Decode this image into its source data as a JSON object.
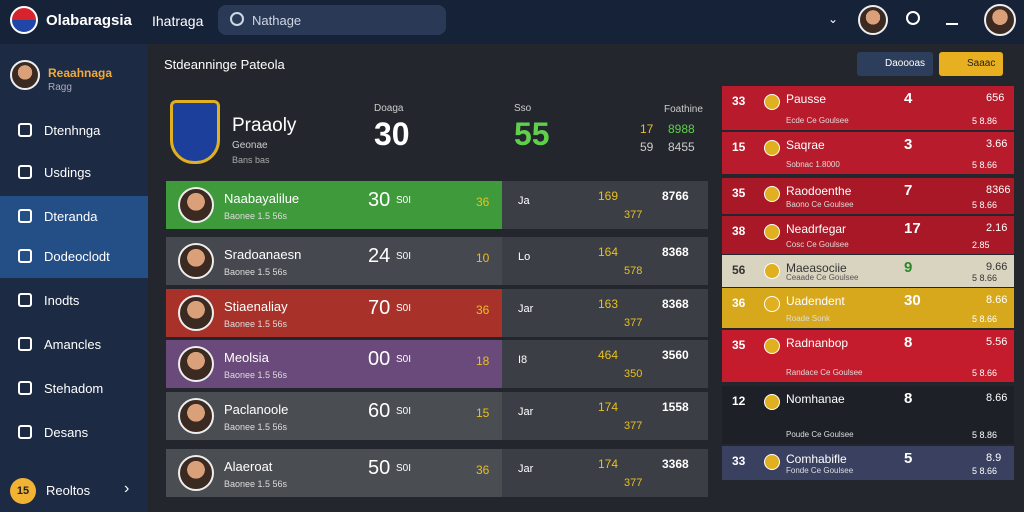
{
  "header": {
    "brand": "Olabaragsia",
    "nav": "Ihatraga",
    "search": "Nathage"
  },
  "sidebar": {
    "user": "Reaahnaga",
    "user_sub": "Ragg",
    "items": [
      "Dtenhnga",
      "Usdings",
      "Dteranda",
      "Dodeoclodt",
      "Inodts",
      "Amancles",
      "Stehadom",
      "Desans"
    ],
    "footer": "Reoltos",
    "footer_badge": "15"
  },
  "main": {
    "title": "Stdeanninge Pateola",
    "buttons": [
      "Daoooas",
      "Saaac"
    ],
    "summary": {
      "team": "Praaoly",
      "sub": "Geonae",
      "meta": "Bans bas",
      "stats": [
        {
          "label": "Doaga",
          "value": "30"
        },
        {
          "label": "Sso",
          "value": "55"
        }
      ],
      "side_label": "Foathine",
      "side": [
        [
          "17",
          "8988"
        ],
        [
          "59",
          "8455"
        ]
      ]
    },
    "rows": [
      {
        "name": "Naabayalilue",
        "meta": "Baonee 1.5 56s",
        "score": "30",
        "tag": "S0I",
        "mid": "36",
        "code": "Ja",
        "val": "169",
        "num": "8766",
        "sub": "377",
        "color": "#3f9a3c"
      },
      {
        "name": "Sradoanaesn",
        "meta": "Baonee 1.5 56s",
        "score": "24",
        "tag": "S0I",
        "mid": "10",
        "code": "Lo",
        "val": "164",
        "num": "8368",
        "sub": "578",
        "color": "#45484e"
      },
      {
        "name": "Stiaenaliay",
        "meta": "Baonee 1.5 56s",
        "score": "70",
        "tag": "S0I",
        "mid": "36",
        "code": "Jar",
        "val": "163",
        "num": "8368",
        "sub": "377",
        "color": "#a8322a"
      },
      {
        "name": "Meolsia",
        "meta": "Baonee 1.5 56s",
        "score": "00",
        "tag": "S0I",
        "mid": "18",
        "code": "I8",
        "val": "464",
        "num": "3560",
        "sub": "350",
        "color": "#6a4a7a"
      },
      {
        "name": "Paclanoole",
        "meta": "Baonee 1.5 56s",
        "score": "60",
        "tag": "S0I",
        "mid": "15",
        "code": "Jar",
        "val": "174",
        "num": "1558",
        "sub": "377",
        "color": "#4a4d52"
      },
      {
        "name": "Alaeroat",
        "meta": "Baonee 1.5 56s",
        "score": "50",
        "tag": "S0I",
        "mid": "36",
        "code": "Jar",
        "val": "174",
        "num": "3368",
        "sub": "377",
        "color": "#4a4d52"
      }
    ]
  },
  "standings": [
    {
      "rank": "33",
      "name": "Pausse",
      "meta": "Ecde Ce Goulsee",
      "score": "4",
      "value": "656",
      "sub": "5 8.86",
      "color": "#b81c2c"
    },
    {
      "rank": "15",
      "name": "Saqrae",
      "meta": "Sobnac 1.8000",
      "score": "3",
      "value": "3.66",
      "sub": "5 8.66",
      "color": "#b81c2c"
    },
    {
      "rank": "35",
      "name": "Raodoenthe",
      "meta": "Baono Ce Goulsee",
      "score": "7",
      "value": "8366",
      "sub": "5 8.66",
      "color": "#a81826"
    },
    {
      "rank": "38",
      "name": "Neadrfegar",
      "meta": "Cosc Ce Goulsee",
      "score": "17",
      "value": "2.16",
      "sub": "2.85",
      "color": "#a81826"
    },
    {
      "rank": "56",
      "name": "Maeasociie",
      "meta": "Ceaade Ce Goulsee",
      "score": "9",
      "value": "9.66",
      "sub": "5 8.66",
      "color": "#d8d4c0"
    },
    {
      "rank": "36",
      "name": "Uadendent",
      "meta": "Roade Sonk",
      "score": "30",
      "value": "8.66",
      "sub": "5 8.66",
      "color": "#d8a81c"
    },
    {
      "rank": "35",
      "name": "Radnanbop",
      "meta": "Randace Ce Goulsee",
      "score": "8",
      "value": "5.56",
      "sub": "5 8.66",
      "color": "#c41c2c"
    },
    {
      "rank": "12",
      "name": "Nomhanae",
      "meta": "Poude Ce Goulsee",
      "score": "8",
      "value": "8.66",
      "sub": "5 8.86",
      "color": "#1d2026"
    },
    {
      "rank": "33",
      "name": "Comhabifle",
      "meta": "Fonde Ce Goulsee",
      "score": "5",
      "value": "8.9",
      "sub": "5 8.66",
      "color": "#3a4060"
    }
  ]
}
